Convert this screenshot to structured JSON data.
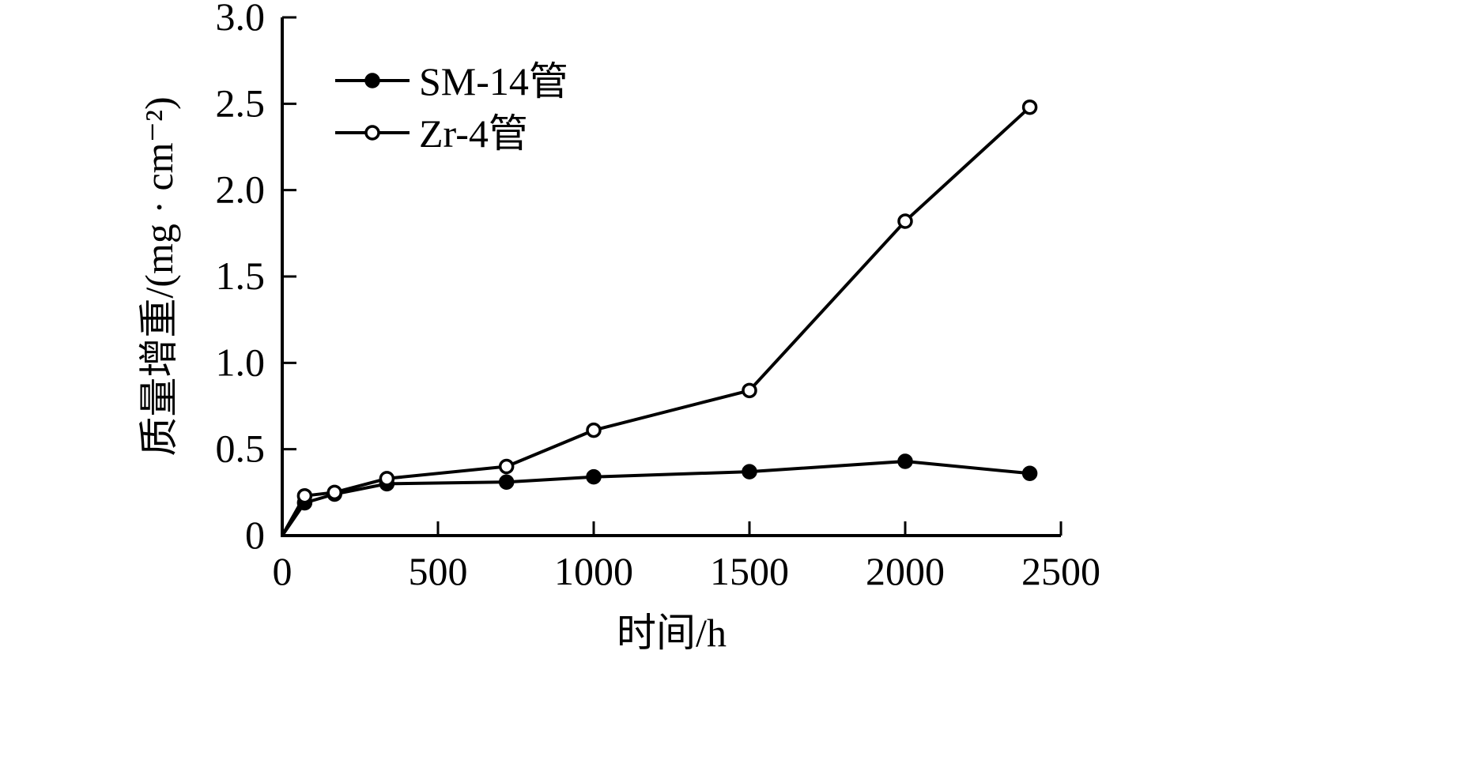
{
  "chart_data": {
    "type": "line",
    "xlabel": "时间/h",
    "ylabel": "质量增重/(mg · cm⁻²)",
    "xlim": [
      0,
      2500
    ],
    "ylim": [
      0,
      3.0
    ],
    "x_ticks": [
      "0",
      "500",
      "1000",
      "1500",
      "2000",
      "2500"
    ],
    "x_tick_values": [
      0,
      500,
      1000,
      1500,
      2000,
      2500
    ],
    "y_ticks": [
      "0",
      "0.5",
      "1.0",
      "1.5",
      "2.0",
      "2.5",
      "3.0"
    ],
    "y_tick_values": [
      0,
      0.5,
      1.0,
      1.5,
      2.0,
      2.5,
      3.0
    ],
    "grid": false,
    "legend_position": "top-left",
    "series": [
      {
        "name": "SM-14管",
        "marker": "filled-circle",
        "color": "#000000",
        "x": [
          0,
          72,
          168,
          336,
          720,
          1000,
          1500,
          2000,
          2400
        ],
        "y": [
          0,
          0.19,
          0.24,
          0.3,
          0.31,
          0.34,
          0.37,
          0.43,
          0.36
        ]
      },
      {
        "name": "Zr-4管",
        "marker": "open-circle",
        "color": "#000000",
        "x": [
          0,
          72,
          168,
          336,
          720,
          1000,
          1500,
          2000,
          2400
        ],
        "y": [
          0,
          0.23,
          0.25,
          0.33,
          0.4,
          0.61,
          0.84,
          1.82,
          2.48
        ]
      }
    ]
  }
}
